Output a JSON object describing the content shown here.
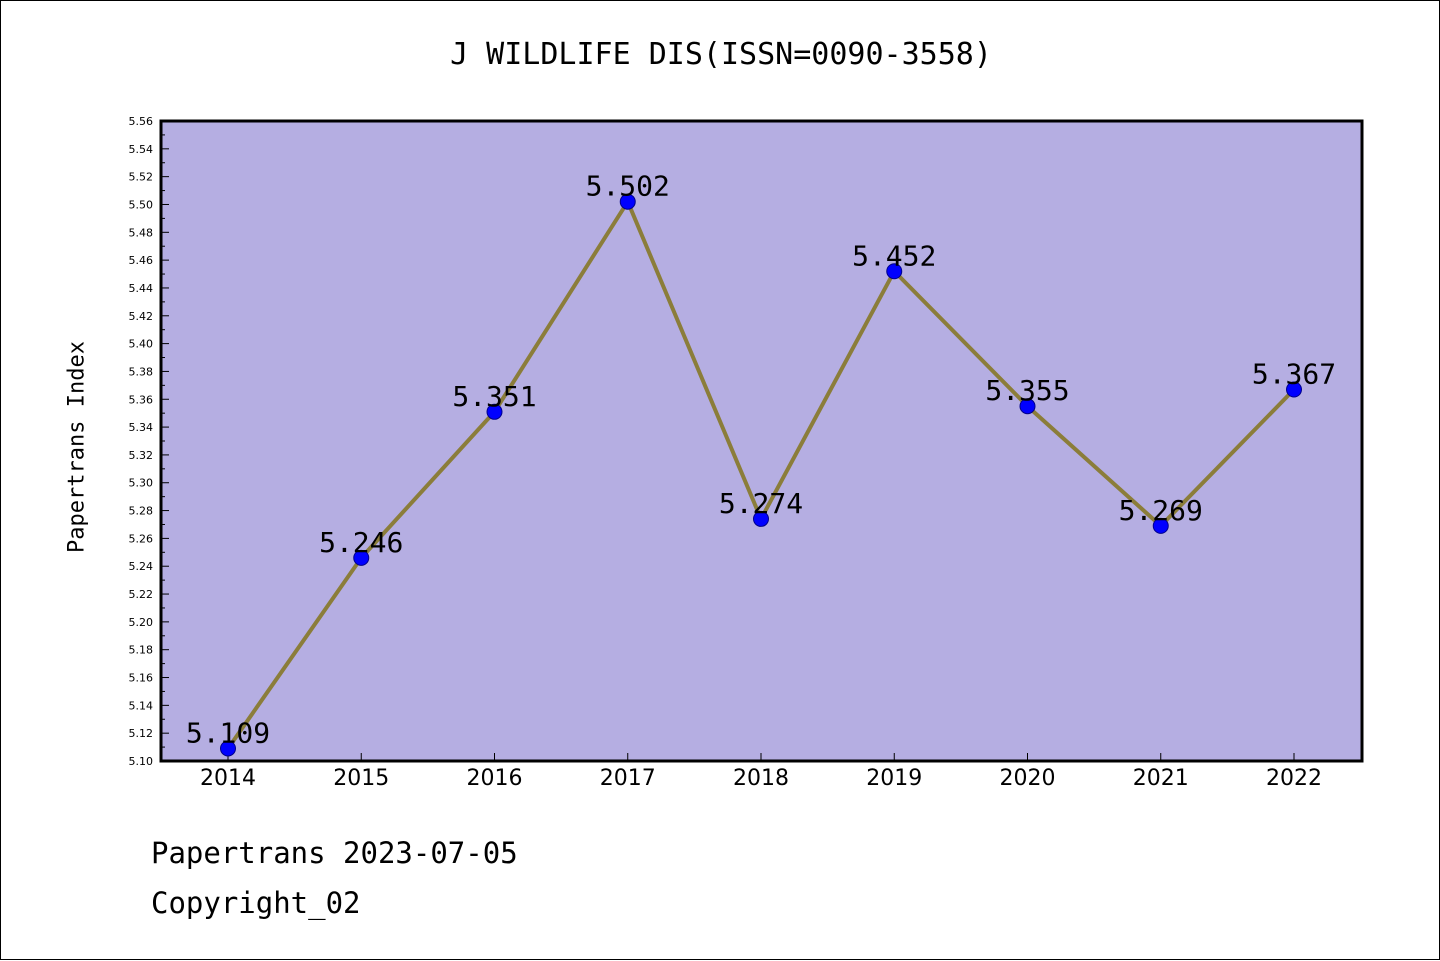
{
  "chart_data": {
    "type": "line",
    "title": "J WILDLIFE DIS(ISSN=0090-3558)",
    "xlabel": "",
    "ylabel": "Papertrans Index",
    "categories": [
      "2014",
      "2015",
      "2016",
      "2017",
      "2018",
      "2019",
      "2020",
      "2021",
      "2022"
    ],
    "series": [
      {
        "values": [
          5.109,
          5.246,
          5.351,
          5.502,
          5.274,
          5.452,
          5.355,
          5.269,
          5.367
        ],
        "line_color": "#8b7d3a",
        "marker_color": "#0000ff"
      }
    ],
    "data_labels": [
      "5.109",
      "5.246",
      "5.351",
      "5.502",
      "5.274",
      "5.452",
      "5.355",
      "5.269",
      "5.367"
    ],
    "ylim": [
      5.1,
      5.56
    ],
    "yticks": [
      "5.10",
      "5.12",
      "5.14",
      "5.16",
      "5.18",
      "5.20",
      "5.22",
      "5.24",
      "5.26",
      "5.28",
      "5.30",
      "5.32",
      "5.34",
      "5.36",
      "5.38",
      "5.40",
      "5.42",
      "5.44",
      "5.46",
      "5.48",
      "5.50",
      "5.52",
      "5.54",
      "5.56"
    ],
    "grid": false,
    "legend": "none",
    "plot_background": "#b5aee2"
  },
  "footer": {
    "date_text": "Papertrans 2023-07-05",
    "copyright_text": "Copyright_02"
  }
}
